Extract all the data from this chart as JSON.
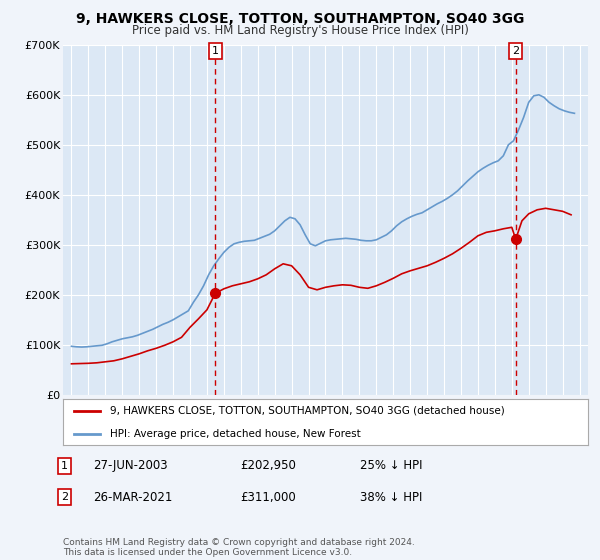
{
  "title": "9, HAWKERS CLOSE, TOTTON, SOUTHAMPTON, SO40 3GG",
  "subtitle": "Price paid vs. HM Land Registry's House Price Index (HPI)",
  "legend_line1": "9, HAWKERS CLOSE, TOTTON, SOUTHAMPTON, SO40 3GG (detached house)",
  "legend_line2": "HPI: Average price, detached house, New Forest",
  "annotation_footer": "Contains HM Land Registry data © Crown copyright and database right 2024.\nThis data is licensed under the Open Government Licence v3.0.",
  "sale1_date": "27-JUN-2003",
  "sale1_price": 202950,
  "sale1_price_str": "£202,950",
  "sale1_pct": "25% ↓ HPI",
  "sale2_date": "26-MAR-2021",
  "sale2_price": 311000,
  "sale2_price_str": "£311,000",
  "sale2_pct": "38% ↓ HPI",
  "price_line_color": "#cc0000",
  "hpi_line_color": "#6699cc",
  "sale_marker_color": "#cc0000",
  "vline_color": "#cc0000",
  "background_color": "#f0f4fa",
  "plot_bg_color": "#dce8f5",
  "grid_color": "#ffffff",
  "ylim": [
    0,
    700000
  ],
  "yticks": [
    0,
    100000,
    200000,
    300000,
    400000,
    500000,
    600000,
    700000
  ],
  "ytick_labels": [
    "£0",
    "£100K",
    "£200K",
    "£300K",
    "£400K",
    "£500K",
    "£600K",
    "£700K"
  ],
  "xlim_start": 1994.5,
  "xlim_end": 2025.5,
  "sale1_x": 2003.49,
  "sale2_x": 2021.23,
  "hpi_years": [
    1995.0,
    1995.3,
    1995.6,
    1995.9,
    1996.2,
    1996.5,
    1996.8,
    1997.1,
    1997.4,
    1997.7,
    1998.0,
    1998.3,
    1998.6,
    1998.9,
    1999.2,
    1999.5,
    1999.8,
    2000.1,
    2000.4,
    2000.7,
    2001.0,
    2001.3,
    2001.6,
    2001.9,
    2002.2,
    2002.5,
    2002.8,
    2003.1,
    2003.4,
    2003.7,
    2004.0,
    2004.3,
    2004.6,
    2004.9,
    2005.2,
    2005.5,
    2005.8,
    2006.1,
    2006.4,
    2006.7,
    2007.0,
    2007.3,
    2007.6,
    2007.9,
    2008.2,
    2008.5,
    2008.8,
    2009.1,
    2009.4,
    2009.7,
    2010.0,
    2010.3,
    2010.6,
    2010.9,
    2011.2,
    2011.5,
    2011.8,
    2012.1,
    2012.4,
    2012.7,
    2013.0,
    2013.3,
    2013.6,
    2013.9,
    2014.2,
    2014.5,
    2014.8,
    2015.1,
    2015.4,
    2015.7,
    2016.0,
    2016.3,
    2016.6,
    2016.9,
    2017.2,
    2017.5,
    2017.8,
    2018.1,
    2018.4,
    2018.7,
    2019.0,
    2019.3,
    2019.6,
    2019.9,
    2020.2,
    2020.5,
    2020.8,
    2021.1,
    2021.4,
    2021.7,
    2022.0,
    2022.3,
    2022.6,
    2022.9,
    2023.2,
    2023.5,
    2023.8,
    2024.1,
    2024.4,
    2024.7
  ],
  "hpi_values": [
    97000,
    96000,
    95500,
    96000,
    97000,
    98000,
    99000,
    102000,
    106000,
    109000,
    112000,
    114000,
    116000,
    119000,
    123000,
    127000,
    131000,
    136000,
    141000,
    145000,
    150000,
    156000,
    162000,
    168000,
    185000,
    200000,
    218000,
    240000,
    258000,
    272000,
    285000,
    295000,
    302000,
    305000,
    307000,
    308000,
    309000,
    313000,
    317000,
    321000,
    328000,
    338000,
    348000,
    355000,
    352000,
    340000,
    320000,
    302000,
    298000,
    303000,
    308000,
    310000,
    311000,
    312000,
    313000,
    312000,
    311000,
    309000,
    308000,
    308000,
    310000,
    315000,
    320000,
    328000,
    338000,
    346000,
    352000,
    357000,
    361000,
    364000,
    370000,
    376000,
    382000,
    387000,
    393000,
    400000,
    408000,
    418000,
    428000,
    437000,
    446000,
    453000,
    459000,
    464000,
    468000,
    478000,
    500000,
    508000,
    530000,
    555000,
    585000,
    598000,
    600000,
    595000,
    585000,
    578000,
    572000,
    568000,
    565000,
    563000
  ],
  "price_years": [
    1995.0,
    1995.5,
    1996.0,
    1996.5,
    1997.0,
    1997.5,
    1998.0,
    1998.5,
    1999.0,
    1999.5,
    2000.0,
    2000.5,
    2001.0,
    2001.5,
    2002.0,
    2002.5,
    2003.0,
    2003.49,
    2004.0,
    2004.5,
    2005.0,
    2005.5,
    2006.0,
    2006.5,
    2007.0,
    2007.5,
    2008.0,
    2008.5,
    2009.0,
    2009.5,
    2010.0,
    2010.5,
    2011.0,
    2011.5,
    2012.0,
    2012.5,
    2013.0,
    2013.5,
    2014.0,
    2014.5,
    2015.0,
    2015.5,
    2016.0,
    2016.5,
    2017.0,
    2017.5,
    2018.0,
    2018.5,
    2019.0,
    2019.5,
    2020.0,
    2020.5,
    2021.0,
    2021.23,
    2021.6,
    2022.0,
    2022.5,
    2023.0,
    2023.5,
    2024.0,
    2024.5
  ],
  "price_values": [
    62000,
    62500,
    63000,
    64000,
    66000,
    68000,
    72000,
    77000,
    82000,
    88000,
    93000,
    99000,
    106000,
    115000,
    135000,
    152000,
    170000,
    202950,
    212000,
    218000,
    222000,
    226000,
    232000,
    240000,
    252000,
    262000,
    258000,
    240000,
    215000,
    210000,
    215000,
    218000,
    220000,
    219000,
    215000,
    213000,
    218000,
    225000,
    233000,
    242000,
    248000,
    253000,
    258000,
    265000,
    273000,
    282000,
    293000,
    305000,
    318000,
    325000,
    328000,
    332000,
    335000,
    311000,
    348000,
    362000,
    370000,
    373000,
    370000,
    367000,
    360000
  ]
}
